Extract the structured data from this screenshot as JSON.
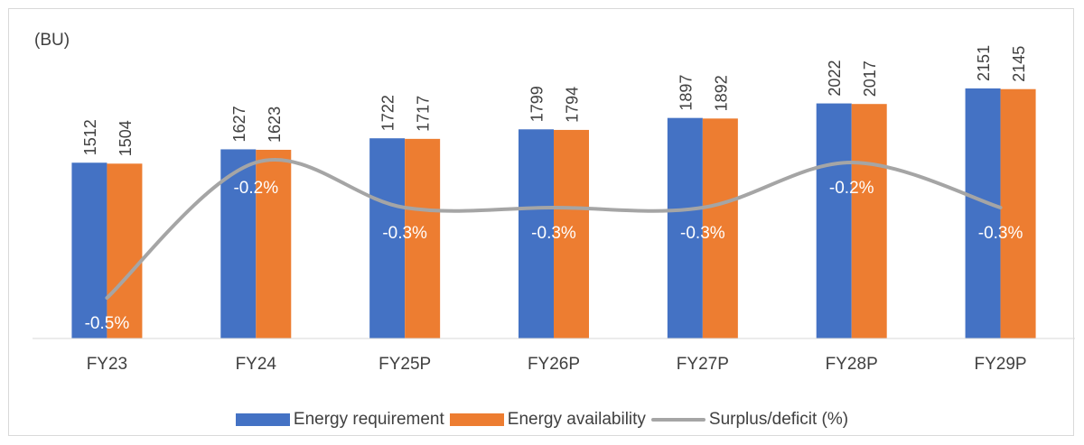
{
  "chart_data": {
    "type": "bar",
    "unit_label": "(BU)",
    "categories": [
      "FY23",
      "FY24",
      "FY25P",
      "FY26P",
      "FY27P",
      "FY28P",
      "FY29P"
    ],
    "series": [
      {
        "name": "Energy requirement",
        "kind": "bar",
        "color": "#4472C4",
        "values": [
          1512,
          1627,
          1722,
          1799,
          1897,
          2022,
          2151
        ]
      },
      {
        "name": "Energy availability",
        "kind": "bar",
        "color": "#ED7D31",
        "values": [
          1504,
          1623,
          1717,
          1794,
          1892,
          2017,
          2145
        ]
      },
      {
        "name": "Surplus/deficit (%)",
        "kind": "line",
        "color": "#A5A5A5",
        "values": [
          -0.5,
          -0.2,
          -0.3,
          -0.3,
          -0.3,
          -0.2,
          -0.3
        ],
        "labels": [
          "-0.5%",
          "-0.2%",
          "-0.3%",
          "-0.3%",
          "-0.3%",
          "-0.2%",
          "-0.3%"
        ]
      }
    ],
    "bar_ylim": [
      0,
      2400
    ],
    "legend_position": "bottom",
    "grid": false
  }
}
